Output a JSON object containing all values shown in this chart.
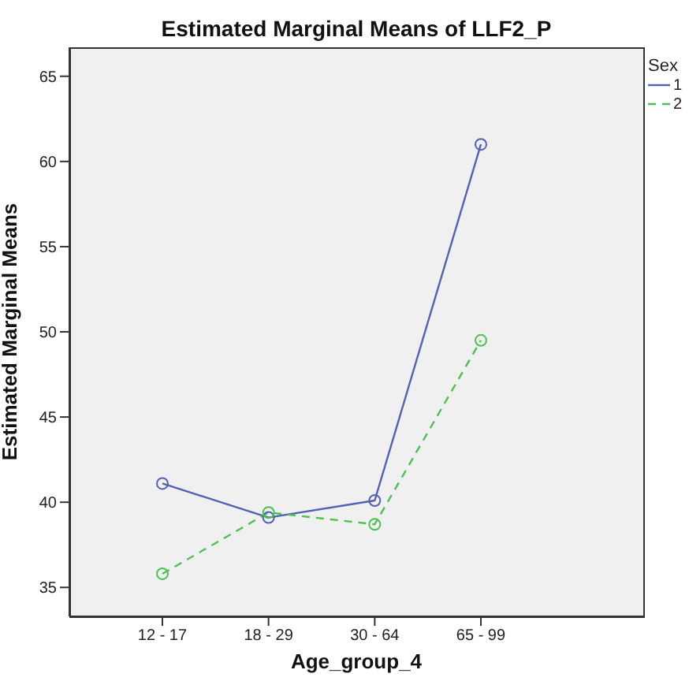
{
  "chart_data": {
    "type": "line",
    "title": "Estimated Marginal Means of LLF2_P",
    "xlabel": "Age_group_4",
    "ylabel": "Estimated Marginal Means",
    "legend_title": "Sex",
    "categories": [
      "12 - 17",
      "18 - 29",
      "30 - 64",
      "65 - 99"
    ],
    "series": [
      {
        "name": "1",
        "color": "#5361b5",
        "values": [
          41.1,
          39.1,
          40.1,
          61.0
        ],
        "line_style": "solid"
      },
      {
        "name": "2",
        "color": "#4cc152",
        "values": [
          35.8,
          39.4,
          38.7,
          49.5
        ],
        "line_style": "dashed"
      }
    ],
    "ylim": [
      33.3,
      66.7
    ],
    "yticks": [
      35,
      40,
      45,
      50,
      55,
      60,
      65
    ],
    "legend": "right",
    "marker": "circle"
  }
}
